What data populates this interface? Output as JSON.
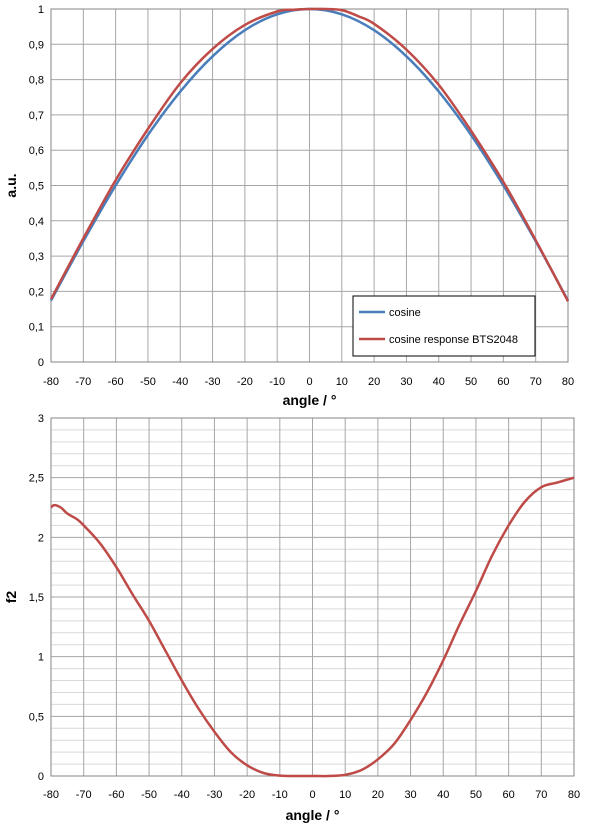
{
  "chart_data": [
    {
      "type": "line",
      "xlabel": "angle / °",
      "ylabel": "a.u.",
      "xlim": [
        -80,
        80
      ],
      "ylim": [
        0,
        1
      ],
      "x_ticks": [
        "-80",
        "-70",
        "-60",
        "-50",
        "-40",
        "-30",
        "-20",
        "-10",
        "0",
        "10",
        "20",
        "30",
        "40",
        "50",
        "60",
        "70",
        "80"
      ],
      "y_ticks": [
        "0",
        "0,1",
        "0,2",
        "0,3",
        "0,4",
        "0,5",
        "0,6",
        "0,7",
        "0,8",
        "0,9",
        "1"
      ],
      "grid": true,
      "legend_position": "bottom-right",
      "series": [
        {
          "name": "cosine",
          "color": "#4a7ebb",
          "x": [
            -80,
            -70,
            -60,
            -50,
            -40,
            -30,
            -20,
            -10,
            0,
            10,
            20,
            30,
            40,
            50,
            60,
            70,
            80
          ],
          "y": [
            0.174,
            0.342,
            0.5,
            0.643,
            0.766,
            0.866,
            0.94,
            0.985,
            1,
            0.985,
            0.94,
            0.866,
            0.766,
            0.643,
            0.5,
            0.342,
            0.174
          ]
        },
        {
          "name": "cosine response BTS2048",
          "color": "#be4b48",
          "x": [
            -80,
            -70,
            -60,
            -50,
            -40,
            -30,
            -20,
            -10,
            -5,
            0,
            5,
            10,
            15,
            20,
            30,
            40,
            50,
            60,
            70,
            80
          ],
          "y": [
            0.178,
            0.35,
            0.515,
            0.66,
            0.79,
            0.887,
            0.955,
            0.993,
            0.998,
            1,
            1,
            0.997,
            0.98,
            0.958,
            0.885,
            0.785,
            0.655,
            0.51,
            0.345,
            0.172
          ]
        }
      ]
    },
    {
      "type": "line",
      "xlabel": "angle / °",
      "ylabel": "f2",
      "xlim": [
        -80,
        80
      ],
      "ylim": [
        0,
        3
      ],
      "x_ticks": [
        "-80",
        "-70",
        "-60",
        "-50",
        "-40",
        "-30",
        "-20",
        "-10",
        "0",
        "10",
        "20",
        "30",
        "40",
        "50",
        "60",
        "70",
        "80"
      ],
      "y_ticks": [
        "0",
        "0,5",
        "1",
        "1,5",
        "2",
        "2,5",
        "3"
      ],
      "grid": true,
      "series": [
        {
          "color": "#be4b48",
          "x": [
            -80,
            -79,
            -77,
            -75,
            -72,
            -70,
            -65,
            -60,
            -55,
            -50,
            -45,
            -40,
            -35,
            -30,
            -25,
            -20,
            -15,
            -10,
            -5,
            0,
            5,
            10,
            15,
            20,
            25,
            30,
            35,
            40,
            45,
            50,
            55,
            60,
            65,
            70,
            75,
            80
          ],
          "y": [
            2.25,
            2.27,
            2.25,
            2.2,
            2.15,
            2.1,
            1.95,
            1.75,
            1.52,
            1.3,
            1.05,
            0.8,
            0.57,
            0.37,
            0.2,
            0.09,
            0.025,
            0.003,
            0.0,
            0.0,
            0.0,
            0.01,
            0.05,
            0.14,
            0.27,
            0.47,
            0.7,
            0.97,
            1.27,
            1.55,
            1.85,
            2.1,
            2.3,
            2.42,
            2.46,
            2.5
          ]
        }
      ]
    }
  ]
}
